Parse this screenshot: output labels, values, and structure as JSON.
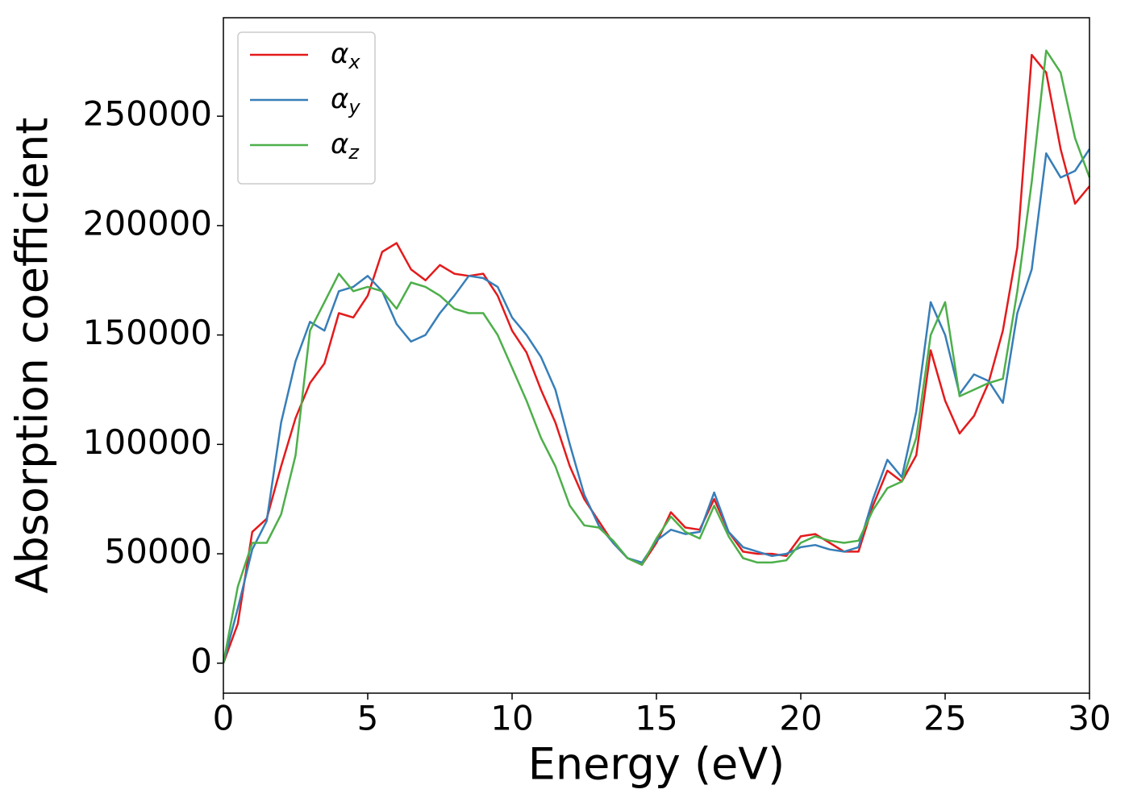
{
  "chart_data": {
    "type": "line",
    "x_label": "Energy (eV)",
    "y_label": "Absorption coefficient",
    "x": [
      0,
      0.5,
      1,
      1.5,
      2,
      2.5,
      3,
      3.5,
      4,
      4.5,
      5,
      5.5,
      6,
      6.5,
      7,
      7.5,
      8,
      8.5,
      9,
      9.5,
      10,
      10.5,
      11,
      11.5,
      12,
      12.5,
      13,
      13.5,
      14,
      14.5,
      15,
      15.5,
      16,
      16.5,
      17,
      17.5,
      18,
      18.5,
      19,
      19.5,
      20,
      20.5,
      21,
      21.5,
      22,
      22.5,
      23,
      23.5,
      24,
      24.5,
      25,
      25.5,
      26,
      26.5,
      27,
      27.5,
      28,
      28.5,
      29,
      29.5,
      30
    ],
    "series": [
      {
        "name": "αx",
        "color": "#e41a1c",
        "values": [
          0,
          18000,
          60000,
          66000,
          90000,
          112000,
          128000,
          137000,
          160000,
          158000,
          168000,
          188000,
          192000,
          180000,
          175000,
          182000,
          178000,
          177000,
          178000,
          168000,
          152000,
          142000,
          125000,
          110000,
          90000,
          75000,
          65000,
          55000,
          48000,
          45000,
          55000,
          69000,
          62000,
          61000,
          75000,
          60000,
          51000,
          50000,
          50000,
          49000,
          58000,
          59000,
          55000,
          51000,
          51000,
          72000,
          88000,
          83000,
          95000,
          143000,
          120000,
          105000,
          113000,
          128000,
          152000,
          190000,
          278000,
          270000,
          235000,
          210000,
          218000
        ]
      },
      {
        "name": "αy",
        "color": "#377eb8",
        "values": [
          0,
          25000,
          52000,
          65000,
          110000,
          138000,
          156000,
          152000,
          170000,
          172000,
          177000,
          170000,
          155000,
          147000,
          150000,
          160000,
          168000,
          177000,
          176000,
          172000,
          158000,
          150000,
          140000,
          125000,
          100000,
          77000,
          63000,
          55000,
          48000,
          46000,
          56000,
          61000,
          59000,
          60000,
          78000,
          60000,
          53000,
          51000,
          49000,
          50000,
          53000,
          54000,
          52000,
          51000,
          53000,
          75000,
          93000,
          85000,
          115000,
          165000,
          150000,
          123000,
          132000,
          129000,
          119000,
          160000,
          180000,
          233000,
          222000,
          225000,
          235000
        ]
      },
      {
        "name": "αz",
        "color": "#4daf4a",
        "values": [
          0,
          35000,
          55000,
          55000,
          68000,
          95000,
          152000,
          165000,
          178000,
          170000,
          172000,
          170000,
          162000,
          174000,
          172000,
          168000,
          162000,
          160000,
          160000,
          150000,
          135000,
          120000,
          103000,
          90000,
          72000,
          63000,
          62000,
          56000,
          48000,
          45000,
          57000,
          67000,
          60000,
          57000,
          72000,
          58000,
          48000,
          46000,
          46000,
          47000,
          55000,
          58000,
          56000,
          55000,
          56000,
          70000,
          80000,
          83000,
          103000,
          150000,
          165000,
          122000,
          125000,
          128000,
          130000,
          170000,
          220000,
          280000,
          270000,
          240000,
          222000
        ]
      }
    ],
    "xlim": [
      0,
      30
    ],
    "xticks": [
      0,
      5,
      10,
      15,
      20,
      25,
      30
    ],
    "ylim": [
      -13700,
      295000
    ],
    "yticks": [
      0,
      50000,
      100000,
      150000,
      200000,
      250000
    ],
    "grid": false,
    "legend": "upper left"
  }
}
